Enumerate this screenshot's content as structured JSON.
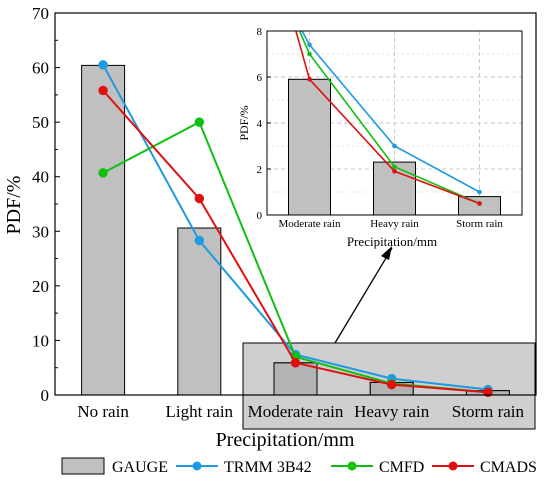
{
  "chart_data": [
    {
      "type": "bar",
      "role": "main",
      "categories": [
        "No rain",
        "Light rain",
        "Moderate rain",
        "Heavy rain",
        "Storm rain"
      ],
      "ylabel": "PDF/%",
      "xlabel": "Precipitation/mm",
      "ylim": [
        0,
        70
      ],
      "yticks": [
        0,
        10,
        20,
        30,
        40,
        50,
        60,
        70
      ],
      "bar_series": {
        "name": "GAUGE",
        "values": [
          60.4,
          30.6,
          5.9,
          2.3,
          0.8
        ]
      },
      "line_series": [
        {
          "name": "TRMM 3B42",
          "color": "#1e9ae0",
          "values": [
            60.5,
            28.3,
            7.4,
            3.0,
            1.0
          ]
        },
        {
          "name": "CMFD",
          "color": "#10c010",
          "values": [
            40.7,
            50.0,
            7.0,
            2.1,
            0.5
          ]
        },
        {
          "name": "CMADS",
          "color": "#e01010",
          "values": [
            55.8,
            36.0,
            5.9,
            1.9,
            0.5
          ]
        }
      ],
      "bar_color": "#c0c0c0",
      "grid": false,
      "legend_position": "bottom"
    },
    {
      "type": "bar",
      "role": "inset",
      "categories": [
        "Moderate rain",
        "Heavy rain",
        "Storm rain"
      ],
      "ylabel": "PDF/%",
      "xlabel": "Precipitation/mm",
      "ylim": [
        0,
        8
      ],
      "yticks": [
        0,
        2,
        4,
        6,
        8
      ],
      "bar_series": {
        "name": "GAUGE",
        "values": [
          5.9,
          2.3,
          0.8
        ]
      },
      "line_series": [
        {
          "name": "TRMM 3B42",
          "color": "#1e9ae0",
          "values": [
            7.4,
            3.0,
            1.0
          ]
        },
        {
          "name": "CMFD",
          "color": "#10c010",
          "values": [
            7.0,
            2.1,
            0.5
          ]
        },
        {
          "name": "CMADS",
          "color": "#e01010",
          "values": [
            5.9,
            1.9,
            0.5
          ]
        }
      ],
      "grid": true
    }
  ]
}
